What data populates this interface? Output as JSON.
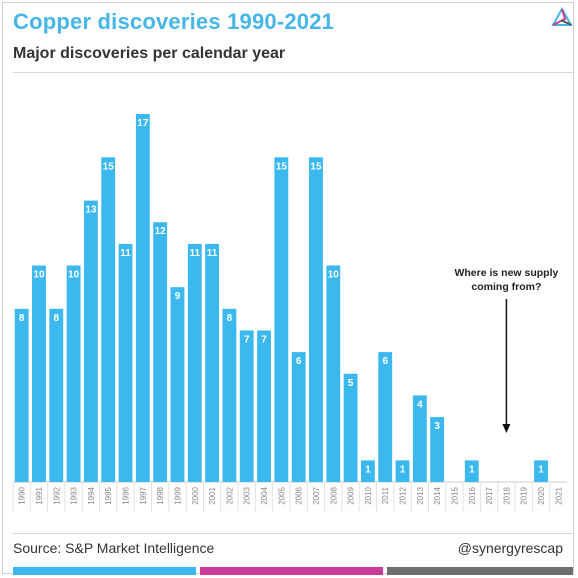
{
  "title": "Copper discoveries 1990-2021",
  "subtitle": "Major discoveries per calendar year",
  "source": "Source: S&P Market Intelligence",
  "handle": "@synergyrescap",
  "logo_icon": "synergy-triangle-logo",
  "colors": {
    "title": "#45b6e6",
    "bar": "#3bb8ee",
    "stripe_blue": "#3bb8ee",
    "stripe_magenta": "#c83c97",
    "stripe_gray": "#6e6e6e"
  },
  "chart_data": {
    "type": "bar",
    "categories": [
      "1990",
      "1991",
      "1992",
      "1993",
      "1994",
      "1995",
      "1996",
      "1997",
      "1998",
      "1999",
      "2000",
      "2001",
      "2002",
      "2003",
      "2004",
      "2005",
      "2006",
      "2007",
      "2008",
      "2009",
      "2010",
      "2011",
      "2012",
      "2013",
      "2014",
      "2015",
      "2016",
      "2017",
      "2018",
      "2019",
      "2020",
      "2021"
    ],
    "values": [
      8,
      10,
      8,
      10,
      13,
      15,
      11,
      17,
      12,
      9,
      11,
      11,
      8,
      7,
      7,
      15,
      6,
      15,
      10,
      5,
      1,
      6,
      1,
      4,
      3,
      0,
      1,
      0,
      0,
      0,
      1,
      0
    ],
    "data_labels": [
      "8",
      "10",
      "8",
      "10",
      "13",
      "15",
      "11",
      "17",
      "12",
      "9",
      "11",
      "11",
      "8",
      "7",
      "7",
      "15",
      "6",
      "15",
      "10",
      "5",
      "1",
      "6",
      "1",
      "4",
      "3",
      "",
      "1",
      "",
      "",
      "",
      "1",
      ""
    ],
    "title": "Copper discoveries 1990-2021",
    "subtitle": "Major discoveries per calendar year",
    "xlabel": "",
    "ylabel": "",
    "ylim": [
      0,
      17
    ],
    "grid": false,
    "legend": "none",
    "annotation": {
      "lines": [
        "Where is new supply",
        "coming from?"
      ],
      "points_to": "2018"
    }
  }
}
